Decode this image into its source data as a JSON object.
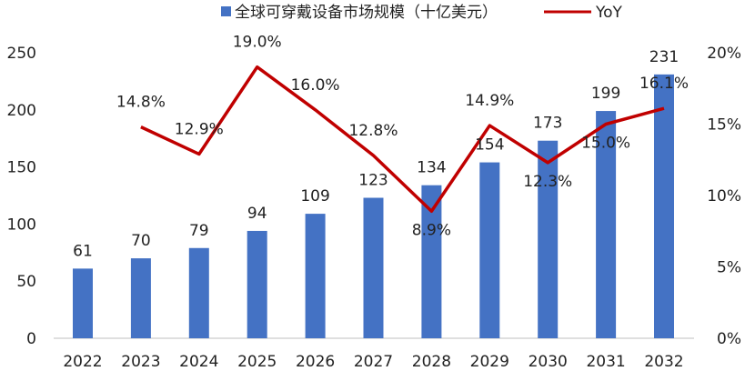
{
  "chart_data": {
    "type": "bar+line",
    "categories": [
      "2022",
      "2023",
      "2024",
      "2025",
      "2026",
      "2027",
      "2028",
      "2029",
      "2030",
      "2031",
      "2032"
    ],
    "series": [
      {
        "name": "全球可穿戴设备市场规模（十亿美元）",
        "type": "bar",
        "axis": "left",
        "color": "#4472C4",
        "values": [
          61,
          70,
          79,
          94,
          109,
          123,
          134,
          154,
          173,
          199,
          231
        ],
        "labels": [
          "61",
          "70",
          "79",
          "94",
          "109",
          "123",
          "134",
          "154",
          "173",
          "199",
          "231"
        ]
      },
      {
        "name": "YoY",
        "type": "line",
        "axis": "right",
        "color": "#C00000",
        "values": [
          null,
          14.8,
          12.9,
          19.0,
          16.0,
          12.8,
          8.9,
          14.9,
          12.3,
          15.0,
          16.1
        ],
        "labels": [
          "",
          "14.8%",
          "12.9%",
          "19.0%",
          "16.0%",
          "12.8%",
          "8.9%",
          "14.9%",
          "12.3%",
          "15.0%",
          "16.1%"
        ]
      }
    ],
    "left_axis": {
      "ylim": [
        0,
        250
      ],
      "ticks": [
        "0",
        "50",
        "100",
        "150",
        "200",
        "250"
      ]
    },
    "right_axis": {
      "ylim": [
        0,
        20
      ],
      "ticks": [
        "0%",
        "5%",
        "10%",
        "15%",
        "20%"
      ]
    },
    "legend": {
      "placement": "top",
      "items": [
        "全球可穿戴设备市场规模（十亿美元）",
        "YoY"
      ]
    },
    "grid": false
  }
}
